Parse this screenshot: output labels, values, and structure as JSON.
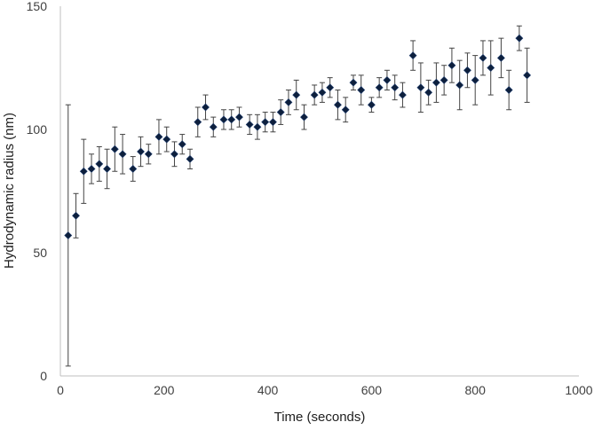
{
  "chart_data": {
    "type": "scatter",
    "title": "",
    "xlabel": "Time (seconds)",
    "ylabel": "Hydrodynamic radius (nm)",
    "xlim": [
      0,
      1000
    ],
    "ylim": [
      0,
      150
    ],
    "xticks": [
      0,
      200,
      400,
      600,
      800,
      1000
    ],
    "yticks": [
      0,
      50,
      100,
      150
    ],
    "grid": false,
    "legend": "none",
    "marker_color": "#0d1f3c",
    "series": [
      {
        "x": [
          15,
          30,
          45,
          60,
          75,
          90,
          105,
          120,
          140,
          155,
          170,
          190,
          205,
          220,
          235,
          250,
          265,
          280,
          295,
          315,
          330,
          345,
          365,
          380,
          395,
          410,
          425,
          440,
          455,
          470,
          490,
          505,
          520,
          535,
          550,
          565,
          580,
          600,
          615,
          630,
          645,
          660,
          680,
          695,
          710,
          725,
          740,
          755,
          770,
          785,
          800,
          815,
          830,
          850,
          865,
          885,
          900
        ],
        "y": [
          57,
          65,
          83,
          84,
          86,
          84,
          92,
          90,
          84,
          91,
          90,
          97,
          96,
          90,
          94,
          88,
          103,
          109,
          101,
          104,
          104,
          105,
          102,
          101,
          103,
          103,
          107,
          111,
          114,
          105,
          114,
          115,
          117,
          110,
          108,
          119,
          116,
          110,
          117,
          120,
          117,
          114,
          130,
          117,
          115,
          119,
          120,
          126,
          118,
          124,
          120,
          129,
          125,
          129,
          116,
          137,
          122
        ],
        "error": [
          53,
          9,
          13,
          6,
          7,
          8,
          9,
          8,
          5,
          6,
          4,
          7,
          5,
          5,
          4,
          4,
          6,
          5,
          4,
          4,
          4,
          4,
          4,
          5,
          4,
          4,
          5,
          5,
          6,
          5,
          4,
          4,
          4,
          6,
          5,
          3,
          6,
          3,
          4,
          4,
          5,
          5,
          6,
          10,
          5,
          8,
          6,
          7,
          10,
          7,
          10,
          7,
          11,
          8,
          8,
          5,
          11
        ]
      }
    ]
  }
}
